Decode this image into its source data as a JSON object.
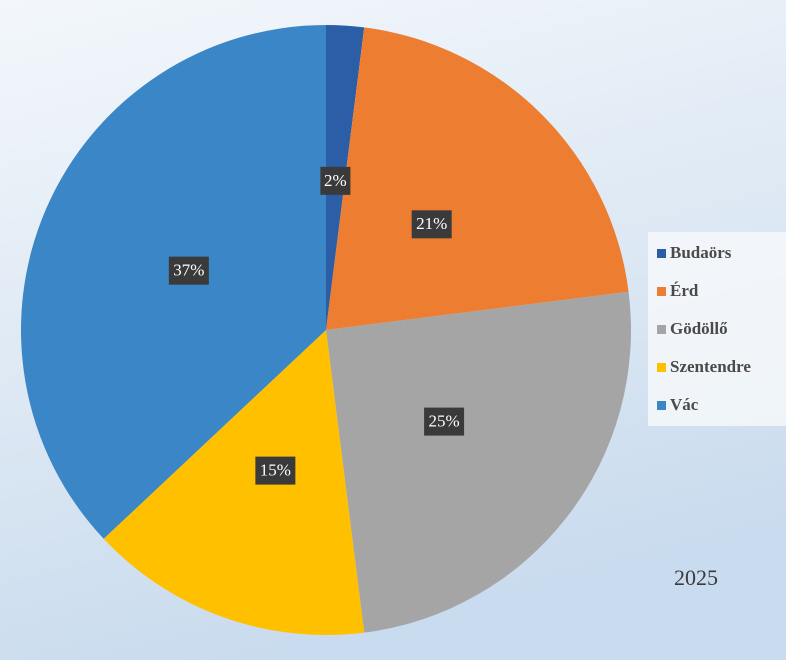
{
  "chart_data": {
    "type": "pie",
    "categories": [
      "Budaörs",
      "Érd",
      "Gödöllő",
      "Szentendre",
      "Vác"
    ],
    "values": [
      2,
      21,
      25,
      15,
      37
    ],
    "value_labels": [
      "2%",
      "21%",
      "25%",
      "15%",
      "37%"
    ],
    "colors": [
      "#2b5ea6",
      "#ed7d31",
      "#a5a5a5",
      "#ffc000",
      "#3a86c7"
    ],
    "annotation": "2025",
    "legend": "right"
  }
}
